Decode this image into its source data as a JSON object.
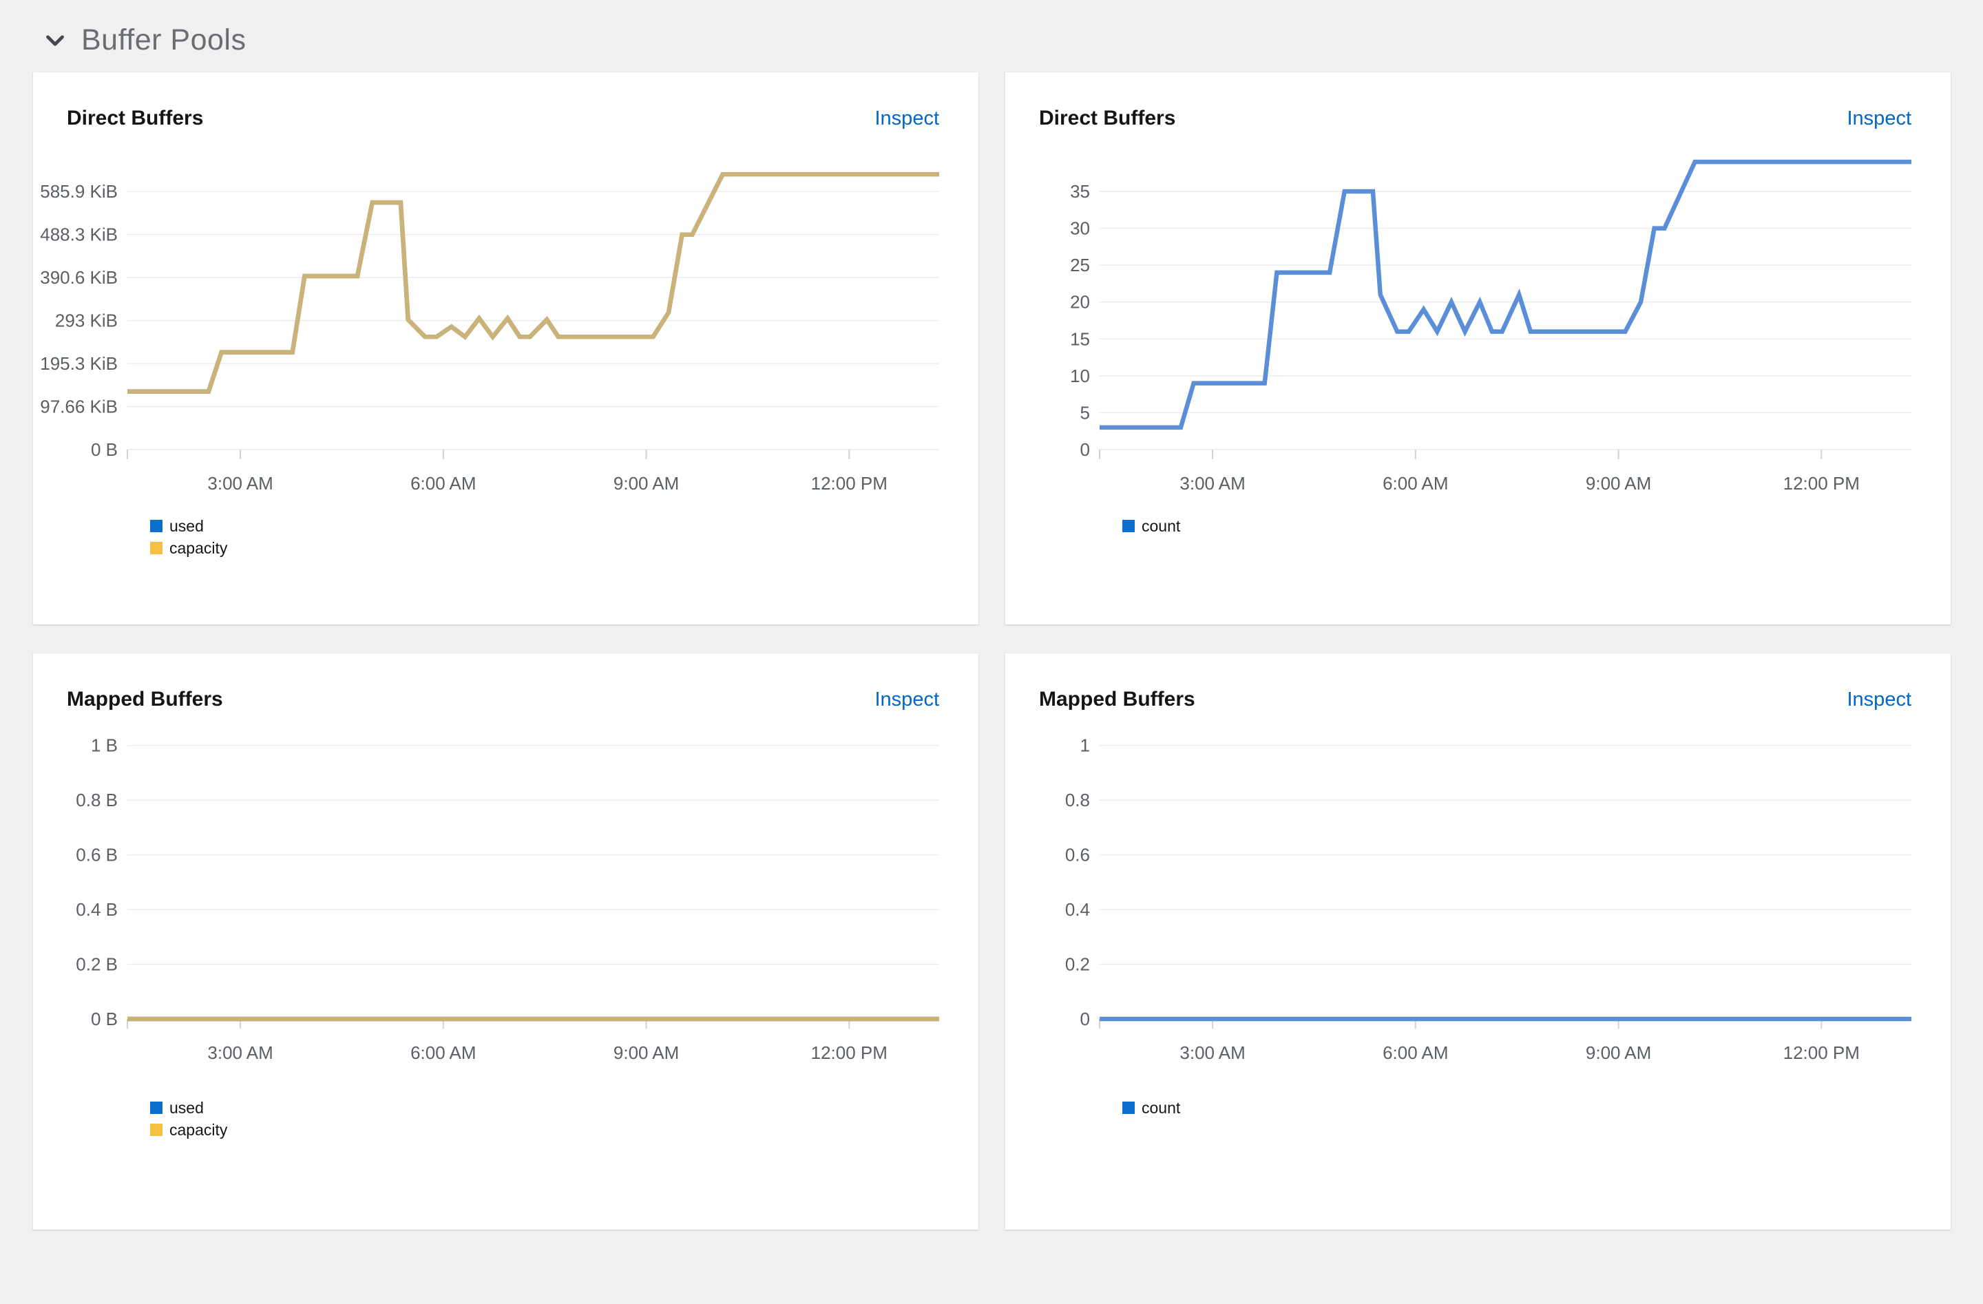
{
  "section": {
    "title": "Buffer Pools"
  },
  "ui": {
    "inspect_label": "Inspect"
  },
  "colors": {
    "page_bg": "#f0f0f0",
    "card_bg": "#ffffff",
    "link": "#0066cc",
    "grid_line": "#ececec",
    "tick_mark": "#d2d2d2",
    "axis_text": "#5a5f66",
    "section_text": "#6a6e73",
    "chevron": "#45494e",
    "line_gold": "#cbb377",
    "line_blue": "#5a8ed8",
    "legend_blue": "#0d6ecd",
    "legend_gold": "#f4c145"
  },
  "chart_data": [
    {
      "type": "line",
      "title": "Direct Buffers",
      "unit": "bytes",
      "x_domain_hours": [
        1.33,
        13.33
      ],
      "x_ticks": [
        {
          "v": 3,
          "label": "3:00 AM"
        },
        {
          "v": 6,
          "label": "6:00 AM"
        },
        {
          "v": 9,
          "label": "9:00 AM"
        },
        {
          "v": 12,
          "label": "12:00 PM"
        }
      ],
      "y_ticks": [
        {
          "v": 0,
          "label": "0 B"
        },
        {
          "v": 97.66,
          "label": "97.66 KiB"
        },
        {
          "v": 195.3,
          "label": "195.3 KiB"
        },
        {
          "v": 293,
          "label": "293 KiB"
        },
        {
          "v": 390.6,
          "label": "390.6 KiB"
        },
        {
          "v": 488.3,
          "label": "488.3 KiB"
        },
        {
          "v": 585.9,
          "label": "585.9 KiB"
        }
      ],
      "y_render_max": 680,
      "grid": true,
      "legend_position": "bottom-left",
      "series": [
        {
          "name": "used",
          "color": "#5a8ed8",
          "points": [
            [
              1.33,
              132
            ],
            [
              2.53,
              132
            ],
            [
              2.72,
              221
            ],
            [
              3.77,
              221
            ],
            [
              3.95,
              394
            ],
            [
              4.73,
              394
            ],
            [
              4.95,
              561
            ],
            [
              5.37,
              561
            ],
            [
              5.48,
              295
            ],
            [
              5.73,
              256
            ],
            [
              5.9,
              256
            ],
            [
              6.12,
              279
            ],
            [
              6.32,
              256
            ],
            [
              6.53,
              298
            ],
            [
              6.73,
              256
            ],
            [
              6.95,
              298
            ],
            [
              7.13,
              256
            ],
            [
              7.28,
              256
            ],
            [
              7.53,
              295
            ],
            [
              7.7,
              256
            ],
            [
              9.1,
              256
            ],
            [
              9.33,
              311
            ],
            [
              9.53,
              488
            ],
            [
              9.68,
              488
            ],
            [
              10.13,
              625
            ],
            [
              13.33,
              625
            ]
          ]
        },
        {
          "name": "capacity",
          "color": "#cbb377",
          "points": [
            [
              1.33,
              132
            ],
            [
              2.53,
              132
            ],
            [
              2.72,
              221
            ],
            [
              3.77,
              221
            ],
            [
              3.95,
              394
            ],
            [
              4.73,
              394
            ],
            [
              4.95,
              561
            ],
            [
              5.37,
              561
            ],
            [
              5.48,
              295
            ],
            [
              5.73,
              256
            ],
            [
              5.9,
              256
            ],
            [
              6.12,
              279
            ],
            [
              6.32,
              256
            ],
            [
              6.53,
              298
            ],
            [
              6.73,
              256
            ],
            [
              6.95,
              298
            ],
            [
              7.13,
              256
            ],
            [
              7.28,
              256
            ],
            [
              7.53,
              295
            ],
            [
              7.7,
              256
            ],
            [
              9.1,
              256
            ],
            [
              9.33,
              311
            ],
            [
              9.53,
              488
            ],
            [
              9.68,
              488
            ],
            [
              10.13,
              625
            ],
            [
              13.33,
              625
            ]
          ]
        }
      ],
      "legend": [
        {
          "label": "used",
          "color": "#0d6ecd"
        },
        {
          "label": "capacity",
          "color": "#f4c145"
        }
      ]
    },
    {
      "type": "line",
      "title": "Direct Buffers",
      "unit": "count",
      "x_domain_hours": [
        1.33,
        13.33
      ],
      "x_ticks": [
        {
          "v": 3,
          "label": "3:00 AM"
        },
        {
          "v": 6,
          "label": "6:00 AM"
        },
        {
          "v": 9,
          "label": "9:00 AM"
        },
        {
          "v": 12,
          "label": "12:00 PM"
        }
      ],
      "y_ticks": [
        {
          "v": 0,
          "label": "0"
        },
        {
          "v": 5,
          "label": "5"
        },
        {
          "v": 10,
          "label": "10"
        },
        {
          "v": 15,
          "label": "15"
        },
        {
          "v": 20,
          "label": "20"
        },
        {
          "v": 25,
          "label": "25"
        },
        {
          "v": 30,
          "label": "30"
        },
        {
          "v": 35,
          "label": "35"
        }
      ],
      "y_render_max": 40.6,
      "grid": true,
      "legend_position": "bottom-left",
      "series": [
        {
          "name": "count",
          "color": "#5a8ed8",
          "points": [
            [
              1.33,
              3
            ],
            [
              2.53,
              3
            ],
            [
              2.72,
              9
            ],
            [
              3.77,
              9
            ],
            [
              3.95,
              24
            ],
            [
              4.73,
              24
            ],
            [
              4.95,
              35
            ],
            [
              5.37,
              35
            ],
            [
              5.48,
              21
            ],
            [
              5.73,
              16
            ],
            [
              5.9,
              16
            ],
            [
              6.12,
              19
            ],
            [
              6.32,
              16
            ],
            [
              6.53,
              20
            ],
            [
              6.73,
              16
            ],
            [
              6.95,
              20
            ],
            [
              7.13,
              16
            ],
            [
              7.28,
              16
            ],
            [
              7.53,
              21
            ],
            [
              7.7,
              16
            ],
            [
              9.1,
              16
            ],
            [
              9.33,
              20
            ],
            [
              9.53,
              30
            ],
            [
              9.68,
              30
            ],
            [
              10.13,
              39
            ],
            [
              13.33,
              39
            ]
          ]
        }
      ],
      "legend": [
        {
          "label": "count",
          "color": "#0d6ecd"
        }
      ]
    },
    {
      "type": "line",
      "title": "Mapped Buffers",
      "unit": "bytes",
      "x_domain_hours": [
        1.33,
        13.33
      ],
      "x_ticks": [
        {
          "v": 3,
          "label": "3:00 AM"
        },
        {
          "v": 6,
          "label": "6:00 AM"
        },
        {
          "v": 9,
          "label": "9:00 AM"
        },
        {
          "v": 12,
          "label": "12:00 PM"
        }
      ],
      "y_ticks": [
        {
          "v": 0,
          "label": "0 B"
        },
        {
          "v": 0.2,
          "label": "0.2 B"
        },
        {
          "v": 0.4,
          "label": "0.4 B"
        },
        {
          "v": 0.6,
          "label": "0.6 B"
        },
        {
          "v": 0.8,
          "label": "0.8 B"
        },
        {
          "v": 1,
          "label": "1 B"
        }
      ],
      "y_render_max": 1.095,
      "grid": true,
      "legend_position": "bottom-left",
      "series": [
        {
          "name": "used",
          "color": "#5a8ed8",
          "points": [
            [
              1.33,
              0
            ],
            [
              13.33,
              0
            ]
          ]
        },
        {
          "name": "capacity",
          "color": "#cbb377",
          "points": [
            [
              1.33,
              0
            ],
            [
              13.33,
              0
            ]
          ]
        }
      ],
      "legend": [
        {
          "label": "used",
          "color": "#0d6ecd"
        },
        {
          "label": "capacity",
          "color": "#f4c145"
        }
      ]
    },
    {
      "type": "line",
      "title": "Mapped Buffers",
      "unit": "count",
      "x_domain_hours": [
        1.33,
        13.33
      ],
      "x_ticks": [
        {
          "v": 3,
          "label": "3:00 AM"
        },
        {
          "v": 6,
          "label": "6:00 AM"
        },
        {
          "v": 9,
          "label": "9:00 AM"
        },
        {
          "v": 12,
          "label": "12:00 PM"
        }
      ],
      "y_ticks": [
        {
          "v": 0,
          "label": "0"
        },
        {
          "v": 0.2,
          "label": "0.2"
        },
        {
          "v": 0.4,
          "label": "0.4"
        },
        {
          "v": 0.6,
          "label": "0.6"
        },
        {
          "v": 0.8,
          "label": "0.8"
        },
        {
          "v": 1,
          "label": "1"
        }
      ],
      "y_render_max": 1.095,
      "grid": true,
      "legend_position": "bottom-left",
      "series": [
        {
          "name": "count",
          "color": "#5a8ed8",
          "points": [
            [
              1.33,
              0
            ],
            [
              13.33,
              0
            ]
          ]
        }
      ],
      "legend": [
        {
          "label": "count",
          "color": "#0d6ecd"
        }
      ]
    }
  ]
}
